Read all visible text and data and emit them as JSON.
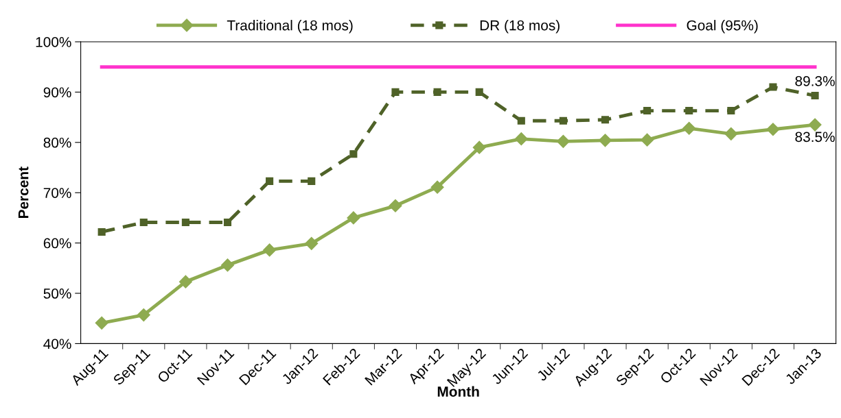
{
  "chart_data": {
    "type": "line",
    "xlabel": "Month",
    "ylabel": "Percent",
    "categories": [
      "Aug-11",
      "Sep-11",
      "Oct-11",
      "Nov-11",
      "Dec-11",
      "Jan-12",
      "Feb-12",
      "Mar-12",
      "Apr-12",
      "May-12",
      "Jun-12",
      "Jul-12",
      "Aug-12",
      "Sep-12",
      "Oct-12",
      "Nov-12",
      "Dec-12",
      "Jan-13"
    ],
    "series": [
      {
        "name": "Traditional (18 mos)",
        "color": "#8eab50",
        "marker": "diamond",
        "line_style": "solid",
        "values": [
          44.1,
          45.7,
          52.3,
          55.6,
          58.6,
          59.9,
          65.0,
          67.4,
          71.1,
          79.0,
          80.7,
          80.2,
          80.4,
          80.5,
          82.8,
          81.7,
          82.6,
          83.5
        ],
        "value_labels": [
          null,
          null,
          null,
          null,
          null,
          null,
          null,
          null,
          null,
          null,
          null,
          null,
          null,
          null,
          null,
          null,
          null,
          "83.5%"
        ]
      },
      {
        "name": "DR (18 mos)",
        "color": "#4f6228",
        "marker": "square",
        "line_style": "dashed",
        "values": [
          62.2,
          64.1,
          64.1,
          64.1,
          72.3,
          72.3,
          77.7,
          90.0,
          90.0,
          90.0,
          84.3,
          84.3,
          84.5,
          86.3,
          86.3,
          86.3,
          91.0,
          89.3
        ],
        "value_labels": [
          null,
          null,
          null,
          null,
          null,
          null,
          null,
          null,
          null,
          null,
          null,
          null,
          null,
          null,
          null,
          null,
          null,
          "89.3%"
        ]
      },
      {
        "name": "Goal (95%)",
        "color": "#ff33cc",
        "marker": "none",
        "line_style": "solid",
        "values": [
          95,
          95,
          95,
          95,
          95,
          95,
          95,
          95,
          95,
          95,
          95,
          95,
          95,
          95,
          95,
          95,
          95,
          95
        ]
      }
    ],
    "ylim": [
      40,
      100
    ],
    "yticks": [
      {
        "value": 40,
        "label": "40%"
      },
      {
        "value": 50,
        "label": "50%"
      },
      {
        "value": 60,
        "label": "60%"
      },
      {
        "value": 70,
        "label": "70%"
      },
      {
        "value": 80,
        "label": "80%"
      },
      {
        "value": 90,
        "label": "90%"
      },
      {
        "value": 100,
        "label": "100%"
      }
    ],
    "grid": false,
    "legend": "top"
  }
}
